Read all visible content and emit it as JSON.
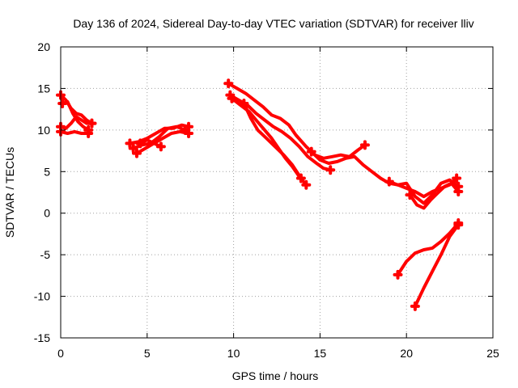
{
  "chart_data": {
    "type": "scatter",
    "title": "Day 136 of 2024, Sidereal Day-to-day VTEC variation (SDTVAR) for receiver lliv",
    "xlabel": "GPS time / hours",
    "ylabel": "SDTVAR / TECUs",
    "xlim": [
      0,
      25
    ],
    "ylim": [
      -15,
      20
    ],
    "x_ticks": [
      "0",
      "5",
      "10",
      "15",
      "20",
      "25"
    ],
    "y_ticks": [
      "20",
      "15",
      "10",
      "5",
      "0",
      "-5",
      "-10",
      "-15"
    ],
    "grid": true,
    "marker": "plus",
    "color": "#ff0000",
    "series": [
      {
        "x": [
          0.0,
          0.3,
          0.6,
          0.9,
          1.2,
          1.5,
          1.8
        ],
        "y": [
          14.2,
          13.6,
          12.6,
          12.0,
          11.8,
          11.2,
          10.8
        ]
      },
      {
        "x": [
          0.0,
          0.3,
          0.6,
          0.9,
          1.2,
          1.5,
          1.8
        ],
        "y": [
          10.4,
          10.2,
          10.8,
          11.6,
          11.2,
          10.8,
          10.8
        ]
      },
      {
        "x": [
          0.1,
          0.4,
          0.7,
          1.0,
          1.3,
          1.6
        ],
        "y": [
          13.2,
          13.4,
          12.0,
          11.0,
          10.4,
          10.0
        ]
      },
      {
        "x": [
          0.0,
          0.4,
          0.8,
          1.2,
          1.6
        ],
        "y": [
          9.8,
          9.6,
          9.8,
          9.6,
          9.6
        ]
      },
      {
        "x": [
          4.0,
          4.5,
          5.0,
          5.5,
          6.0,
          6.5,
          7.0,
          7.4
        ],
        "y": [
          8.4,
          8.6,
          9.0,
          9.6,
          10.2,
          10.2,
          10.6,
          10.4
        ]
      },
      {
        "x": [
          4.2,
          4.7,
          5.2,
          5.7,
          6.2,
          6.7,
          7.2
        ],
        "y": [
          7.8,
          8.2,
          8.4,
          9.2,
          10.2,
          10.4,
          10.0
        ]
      },
      {
        "x": [
          4.4,
          4.9,
          5.4,
          5.9,
          6.4,
          6.9,
          7.4
        ],
        "y": [
          7.2,
          7.8,
          8.4,
          9.0,
          9.6,
          9.8,
          9.6
        ]
      },
      {
        "x": [
          4.6,
          5.0,
          5.4,
          5.8
        ],
        "y": [
          8.4,
          8.8,
          8.4,
          8.0
        ]
      },
      {
        "x": [
          9.7,
          10.2,
          10.7,
          11.2,
          11.7,
          12.2,
          12.7,
          13.2,
          13.6,
          14.2,
          14.7,
          15.2,
          15.7,
          16.2,
          16.7,
          17.2,
          17.6
        ],
        "y": [
          15.6,
          15.0,
          14.4,
          13.6,
          12.8,
          11.8,
          11.4,
          10.6,
          9.4,
          8.0,
          7.0,
          6.6,
          6.8,
          7.0,
          6.8,
          7.6,
          8.2
        ]
      },
      {
        "x": [
          9.8,
          10.3,
          10.8,
          11.3,
          11.8,
          12.3,
          12.8,
          13.3,
          13.8,
          14.3,
          14.8,
          15.2,
          15.6
        ],
        "y": [
          14.2,
          13.6,
          13.0,
          12.0,
          11.2,
          10.4,
          9.8,
          9.0,
          8.0,
          6.8,
          6.0,
          5.4,
          5.2
        ]
      },
      {
        "x": [
          9.9,
          10.4,
          10.9,
          11.3,
          11.8,
          12.2,
          12.6,
          13.0,
          13.4,
          13.8,
          14.2
        ],
        "y": [
          13.8,
          13.0,
          12.2,
          11.2,
          10.0,
          9.0,
          7.8,
          6.6,
          5.6,
          4.4,
          3.4
        ]
      },
      {
        "x": [
          10.6,
          11.0,
          11.4,
          11.9,
          12.4,
          12.9,
          13.4,
          13.9
        ],
        "y": [
          13.2,
          11.4,
          10.0,
          9.0,
          8.0,
          7.0,
          5.8,
          4.2
        ]
      },
      {
        "x": [
          14.5,
          15.0,
          15.5,
          16.0,
          16.5,
          17.0,
          17.5,
          18.0,
          18.5,
          19.0,
          19.5,
          20.0,
          20.5,
          21.0,
          21.5,
          22.0,
          22.5,
          22.9
        ],
        "y": [
          7.4,
          6.4,
          6.0,
          6.2,
          6.6,
          6.8,
          5.8,
          5.0,
          4.2,
          3.6,
          3.4,
          3.0,
          2.6,
          2.0,
          2.6,
          3.0,
          3.4,
          4.2
        ]
      },
      {
        "x": [
          19.0,
          19.5,
          20.0,
          20.5,
          21.0,
          21.5,
          22.0,
          22.5,
          23.0
        ],
        "y": [
          3.8,
          3.4,
          3.6,
          2.0,
          1.2,
          2.2,
          3.6,
          4.0,
          3.2
        ]
      },
      {
        "x": [
          20.2,
          20.6,
          21.0,
          21.4,
          21.8,
          22.2,
          22.6,
          23.0
        ],
        "y": [
          2.2,
          1.0,
          0.6,
          1.6,
          2.4,
          3.2,
          3.6,
          2.6
        ]
      },
      {
        "x": [
          19.5,
          20.0,
          20.5,
          21.0,
          21.5,
          22.0,
          22.5,
          23.0
        ],
        "y": [
          -7.4,
          -5.8,
          -4.8,
          -4.4,
          -4.2,
          -3.4,
          -2.4,
          -1.2
        ]
      },
      {
        "x": [
          20.5,
          21.0,
          21.5,
          22.0,
          22.5,
          23.0
        ],
        "y": [
          -11.2,
          -9.0,
          -7.0,
          -5.0,
          -2.8,
          -1.4
        ]
      }
    ]
  }
}
